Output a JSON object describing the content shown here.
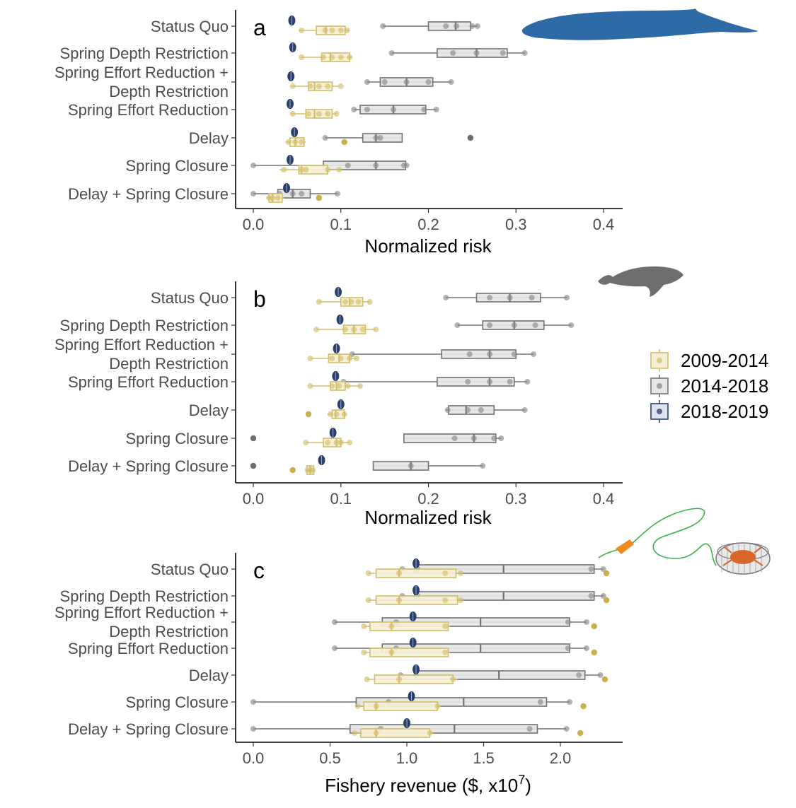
{
  "categories": [
    "Status Quo",
    "Spring Depth Restriction",
    "Spring Effort Reduction + Depth Restriction",
    "Spring Effort Reduction",
    "Delay",
    "Spring Closure",
    "Delay + Spring Closure"
  ],
  "category_label_lines": [
    [
      "Status Quo"
    ],
    [
      "Spring Depth Restriction"
    ],
    [
      "Spring Effort Reduction +",
      "Depth Restriction"
    ],
    [
      "Spring Effort Reduction"
    ],
    [
      "Delay"
    ],
    [
      "Spring Closure"
    ],
    [
      "Delay + Spring Closure"
    ]
  ],
  "legend": {
    "items": [
      {
        "label": "2009-2014",
        "stroke": "#d4be6a",
        "fill": "#f5efd6",
        "dot": "#d4be6a"
      },
      {
        "label": "2014-2018",
        "stroke": "#737373",
        "fill": "#e6e6e6",
        "dot": "#8a8a8a"
      },
      {
        "label": "2018-2019",
        "stroke": "#2b3f6b",
        "fill": "#dde3ef",
        "dot": "#2b3f6b"
      }
    ]
  },
  "colors": {
    "p1": "#c9b45a",
    "p2": "#8a8a8a",
    "p3": "#2b3f6b",
    "blue_whale": "#2d6aa6",
    "humpback": "#6e6e6e",
    "buoy": "#f08c1f",
    "line": "#3ab24a",
    "crab": "#d8682a",
    "trap": "#777777"
  },
  "illustrations": [
    "blue-whale-icon",
    "humpback-whale-icon",
    "crab-trap-icon"
  ],
  "chart_data": [
    {
      "panel": "a",
      "type": "boxplot",
      "orientation": "horizontal",
      "xlabel": "Normalized risk",
      "xlim": [
        0,
        0.4
      ],
      "xticks": [
        0.0,
        0.1,
        0.2,
        0.3,
        0.4
      ],
      "xtick_labels": [
        "0.0",
        "0.1",
        "0.2",
        "0.3",
        "0.4"
      ],
      "series": [
        {
          "name": "2009-2014",
          "boxes": [
            {
              "q1": 0.072,
              "median": 0.083,
              "q3": 0.105,
              "lo": 0.052,
              "hi": 0.11,
              "points": [
                0.055,
                0.082,
                0.09,
                0.1,
                0.107
              ],
              "outliers": []
            },
            {
              "q1": 0.078,
              "median": 0.088,
              "q3": 0.11,
              "lo": 0.055,
              "hi": 0.112,
              "points": [
                0.055,
                0.08,
                0.09,
                0.1,
                0.11
              ],
              "outliers": []
            },
            {
              "q1": 0.063,
              "median": 0.07,
              "q3": 0.09,
              "lo": 0.043,
              "hi": 0.098,
              "points": [
                0.045,
                0.065,
                0.075,
                0.085,
                0.1
              ],
              "outliers": []
            },
            {
              "q1": 0.06,
              "median": 0.07,
              "q3": 0.09,
              "lo": 0.043,
              "hi": 0.095,
              "points": [
                0.045,
                0.063,
                0.075,
                0.085,
                0.095
              ],
              "outliers": []
            },
            {
              "q1": 0.042,
              "median": 0.048,
              "q3": 0.058,
              "lo": 0.037,
              "hi": 0.06,
              "points": [
                0.04,
                0.048,
                0.055
              ],
              "outliers": [
                0.104
              ]
            },
            {
              "q1": 0.052,
              "median": 0.055,
              "q3": 0.085,
              "lo": 0.03,
              "hi": 0.098,
              "points": [
                0.035,
                0.055,
                0.06,
                0.085,
                0.098
              ],
              "outliers": []
            },
            {
              "q1": 0.018,
              "median": 0.022,
              "q3": 0.033,
              "lo": 0.015,
              "hi": 0.035,
              "points": [
                0.018,
                0.022,
                0.028
              ],
              "outliers": [
                0.075
              ]
            }
          ]
        },
        {
          "name": "2014-2018",
          "boxes": [
            {
              "q1": 0.2,
              "median": 0.231,
              "q3": 0.248,
              "lo": 0.148,
              "hi": 0.256,
              "points": [
                0.148,
                0.22,
                0.232,
                0.25,
                0.256
              ],
              "outliers": []
            },
            {
              "q1": 0.21,
              "median": 0.255,
              "q3": 0.29,
              "lo": 0.158,
              "hi": 0.31,
              "points": [
                0.158,
                0.228,
                0.255,
                0.285,
                0.31
              ],
              "outliers": []
            },
            {
              "q1": 0.145,
              "median": 0.175,
              "q3": 0.205,
              "lo": 0.13,
              "hi": 0.226,
              "points": [
                0.13,
                0.15,
                0.175,
                0.2,
                0.226
              ],
              "outliers": []
            },
            {
              "q1": 0.122,
              "median": 0.16,
              "q3": 0.197,
              "lo": 0.115,
              "hi": 0.209,
              "points": [
                0.115,
                0.13,
                0.16,
                0.195,
                0.209
              ],
              "outliers": []
            },
            {
              "q1": 0.125,
              "median": 0.14,
              "q3": 0.17,
              "lo": 0.082,
              "hi": 0.17,
              "points": [
                0.082,
                0.14,
                0.145
              ],
              "outliers": [
                0.248
              ]
            },
            {
              "q1": 0.08,
              "median": 0.14,
              "q3": 0.174,
              "lo": 0.0,
              "hi": 0.175,
              "points": [
                0.0,
                0.108,
                0.14,
                0.172,
                0.175
              ],
              "outliers": []
            },
            {
              "q1": 0.028,
              "median": 0.045,
              "q3": 0.065,
              "lo": 0.0,
              "hi": 0.096,
              "points": [
                0.0,
                0.03,
                0.045,
                0.055,
                0.096
              ],
              "outliers": []
            }
          ]
        },
        {
          "name": "2018-2019",
          "boxes": [
            {
              "median": 0.044
            },
            {
              "median": 0.045
            },
            {
              "median": 0.043
            },
            {
              "median": 0.042
            },
            {
              "median": 0.047
            },
            {
              "median": 0.042
            },
            {
              "median": 0.038
            }
          ]
        }
      ]
    },
    {
      "panel": "b",
      "type": "boxplot",
      "orientation": "horizontal",
      "xlabel": "Normalized risk",
      "xlim": [
        0,
        0.4
      ],
      "xticks": [
        0.0,
        0.1,
        0.2,
        0.3,
        0.4
      ],
      "xtick_labels": [
        "0.0",
        "0.1",
        "0.2",
        "0.3",
        "0.4"
      ],
      "series": [
        {
          "name": "2009-2014",
          "boxes": [
            {
              "q1": 0.1,
              "median": 0.11,
              "q3": 0.125,
              "lo": 0.075,
              "hi": 0.133,
              "points": [
                0.075,
                0.105,
                0.112,
                0.12,
                0.133
              ],
              "outliers": []
            },
            {
              "q1": 0.103,
              "median": 0.115,
              "q3": 0.128,
              "lo": 0.072,
              "hi": 0.14,
              "points": [
                0.072,
                0.105,
                0.115,
                0.125,
                0.14
              ],
              "outliers": []
            },
            {
              "q1": 0.086,
              "median": 0.098,
              "q3": 0.11,
              "lo": 0.065,
              "hi": 0.118,
              "points": [
                0.065,
                0.09,
                0.1,
                0.11,
                0.118
              ],
              "outliers": []
            },
            {
              "q1": 0.088,
              "median": 0.095,
              "q3": 0.105,
              "lo": 0.065,
              "hi": 0.122,
              "points": [
                0.065,
                0.09,
                0.098,
                0.108,
                0.122
              ],
              "outliers": []
            },
            {
              "q1": 0.09,
              "median": 0.094,
              "q3": 0.104,
              "lo": 0.085,
              "hi": 0.106,
              "points": [
                0.088,
                0.095,
                0.104
              ],
              "outliers": [
                0.063
              ]
            },
            {
              "q1": 0.08,
              "median": 0.095,
              "q3": 0.1,
              "lo": 0.06,
              "hi": 0.11,
              "points": [
                0.06,
                0.085,
                0.095,
                0.1,
                0.11
              ],
              "outliers": []
            },
            {
              "q1": 0.061,
              "median": 0.065,
              "q3": 0.069,
              "lo": 0.06,
              "hi": 0.07,
              "points": [
                0.062,
                0.065,
                0.068
              ],
              "outliers": [
                0.045
              ]
            }
          ]
        },
        {
          "name": "2014-2018",
          "boxes": [
            {
              "q1": 0.255,
              "median": 0.293,
              "q3": 0.328,
              "lo": 0.22,
              "hi": 0.358,
              "points": [
                0.22,
                0.27,
                0.293,
                0.318,
                0.358
              ],
              "outliers": []
            },
            {
              "q1": 0.262,
              "median": 0.298,
              "q3": 0.332,
              "lo": 0.233,
              "hi": 0.363,
              "points": [
                0.233,
                0.27,
                0.298,
                0.322,
                0.363
              ],
              "outliers": []
            },
            {
              "q1": 0.215,
              "median": 0.27,
              "q3": 0.3,
              "lo": 0.113,
              "hi": 0.32,
              "points": [
                0.113,
                0.247,
                0.27,
                0.298,
                0.32
              ],
              "outliers": []
            },
            {
              "q1": 0.21,
              "median": 0.27,
              "q3": 0.298,
              "lo": 0.103,
              "hi": 0.313,
              "points": [
                0.103,
                0.245,
                0.27,
                0.293,
                0.313
              ],
              "outliers": []
            },
            {
              "q1": 0.223,
              "median": 0.243,
              "q3": 0.275,
              "lo": 0.22,
              "hi": 0.31,
              "points": [
                0.222,
                0.245,
                0.26,
                0.31
              ],
              "outliers": []
            },
            {
              "q1": 0.172,
              "median": 0.252,
              "q3": 0.277,
              "lo": 0.172,
              "hi": 0.283,
              "points": [
                0.23,
                0.252,
                0.275,
                0.283
              ],
              "outliers": [
                0.0
              ]
            },
            {
              "q1": 0.137,
              "median": 0.18,
              "q3": 0.2,
              "lo": 0.137,
              "hi": 0.262,
              "points": [
                0.18,
                0.262
              ],
              "outliers": [
                0.0
              ]
            }
          ]
        },
        {
          "name": "2018-2019",
          "boxes": [
            {
              "median": 0.097
            },
            {
              "median": 0.099
            },
            {
              "median": 0.095
            },
            {
              "median": 0.094
            },
            {
              "median": 0.1
            },
            {
              "median": 0.091
            },
            {
              "median": 0.078
            }
          ]
        }
      ]
    },
    {
      "panel": "c",
      "type": "boxplot",
      "orientation": "horizontal",
      "xlabel": "Fishery revenue ($, x10",
      "xlabel_sup": "7",
      "xlabel_end": ")",
      "xlim": [
        0,
        2.4
      ],
      "xticks": [
        0.0,
        0.5,
        1.0,
        1.5,
        2.0
      ],
      "xtick_labels": [
        "0.0",
        "0.5",
        "1.0",
        "1.5",
        "2.0"
      ],
      "series": [
        {
          "name": "2009-2014",
          "boxes": [
            {
              "q1": 0.8,
              "median": 0.95,
              "q3": 1.32,
              "lo": 0.75,
              "hi": 1.35,
              "points": [
                0.75,
                0.95,
                1.25,
                1.35
              ],
              "outliers": [
                2.3
              ]
            },
            {
              "q1": 0.8,
              "median": 0.95,
              "q3": 1.33,
              "lo": 0.75,
              "hi": 1.35,
              "points": [
                0.75,
                0.95,
                1.25,
                1.35
              ],
              "outliers": [
                2.3
              ]
            },
            {
              "q1": 0.76,
              "median": 0.9,
              "q3": 1.27,
              "lo": 0.72,
              "hi": 1.28,
              "points": [
                0.72,
                0.9,
                1.25
              ],
              "outliers": [
                2.22
              ]
            },
            {
              "q1": 0.76,
              "median": 0.9,
              "q3": 1.27,
              "lo": 0.72,
              "hi": 1.28,
              "points": [
                0.72,
                0.9,
                1.25
              ],
              "outliers": [
                2.22
              ]
            },
            {
              "q1": 0.79,
              "median": 0.95,
              "q3": 1.3,
              "lo": 0.74,
              "hi": 1.33,
              "points": [
                0.74,
                0.95,
                1.3
              ],
              "outliers": [
                2.29
              ]
            },
            {
              "q1": 0.72,
              "median": 0.8,
              "q3": 1.2,
              "lo": 0.68,
              "hi": 1.22,
              "points": [
                0.68,
                0.8,
                1.2
              ],
              "outliers": [
                2.15
              ]
            },
            {
              "q1": 0.7,
              "median": 0.8,
              "q3": 1.15,
              "lo": 0.66,
              "hi": 1.17,
              "points": [
                0.66,
                0.8,
                1.15
              ],
              "outliers": [
                2.13
              ]
            }
          ]
        },
        {
          "name": "2014-2018",
          "boxes": [
            {
              "q1": 1.05,
              "median": 1.63,
              "q3": 2.22,
              "lo": 0.97,
              "hi": 2.28,
              "points": [
                0.97,
                1.07,
                2.2,
                2.28
              ],
              "outliers": []
            },
            {
              "q1": 1.05,
              "median": 1.63,
              "q3": 2.22,
              "lo": 0.97,
              "hi": 2.28,
              "points": [
                0.97,
                1.07,
                2.2,
                2.28
              ],
              "outliers": []
            },
            {
              "q1": 0.84,
              "median": 1.48,
              "q3": 2.06,
              "lo": 0.53,
              "hi": 2.17,
              "points": [
                0.53,
                0.93,
                2.05,
                2.17
              ],
              "outliers": []
            },
            {
              "q1": 0.84,
              "median": 1.48,
              "q3": 2.06,
              "lo": 0.53,
              "hi": 2.17,
              "points": [
                0.53,
                0.93,
                2.05,
                2.17
              ],
              "outliers": []
            },
            {
              "q1": 1.05,
              "median": 1.6,
              "q3": 2.16,
              "lo": 0.96,
              "hi": 2.26,
              "points": [
                0.96,
                1.06,
                2.12,
                2.26
              ],
              "outliers": []
            },
            {
              "q1": 0.67,
              "median": 1.37,
              "q3": 1.91,
              "lo": 0.0,
              "hi": 2.06,
              "points": [
                0.0,
                0.88,
                1.87,
                2.06
              ],
              "outliers": []
            },
            {
              "q1": 0.63,
              "median": 1.31,
              "q3": 1.85,
              "lo": 0.0,
              "hi": 2.04,
              "points": [
                0.0,
                0.83,
                1.8,
                2.04
              ],
              "outliers": []
            }
          ]
        },
        {
          "name": "2018-2019",
          "boxes": [
            {
              "median": 1.06
            },
            {
              "median": 1.06
            },
            {
              "median": 1.04
            },
            {
              "median": 1.04
            },
            {
              "median": 1.06
            },
            {
              "median": 1.03
            },
            {
              "median": 1.0
            }
          ]
        }
      ]
    }
  ]
}
